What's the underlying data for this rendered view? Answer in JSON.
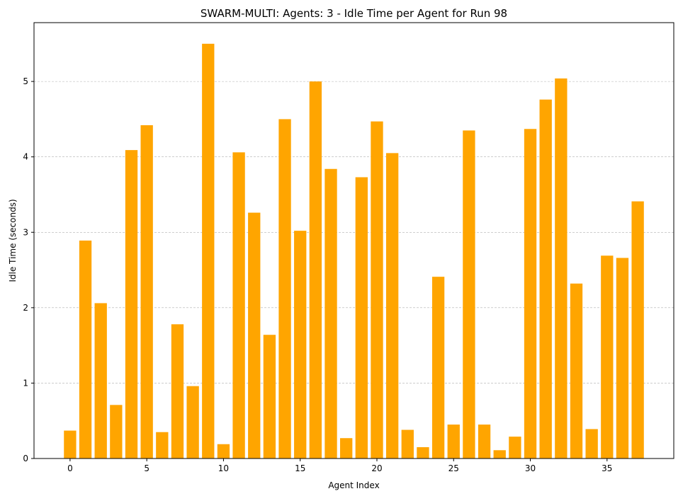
{
  "chart_data": {
    "type": "bar",
    "title": "SWARM-MULTI: Agents: 3 - Idle Time per Agent for Run 98",
    "xlabel": "Agent Index",
    "ylabel": "Idle Time (seconds)",
    "x": [
      0,
      1,
      2,
      3,
      4,
      5,
      6,
      7,
      8,
      9,
      10,
      11,
      12,
      13,
      14,
      15,
      16,
      17,
      18,
      19,
      20,
      21,
      22,
      23,
      24,
      25,
      26,
      27,
      28,
      29,
      30,
      31,
      32,
      33,
      34,
      35,
      36,
      37
    ],
    "values": [
      0.37,
      2.89,
      2.06,
      0.71,
      4.09,
      4.42,
      0.35,
      1.78,
      0.96,
      5.5,
      0.19,
      4.06,
      3.26,
      1.64,
      4.5,
      3.02,
      5.0,
      3.84,
      0.27,
      3.73,
      4.47,
      4.05,
      0.38,
      0.15,
      2.41,
      0.45,
      4.35,
      0.45,
      0.11,
      0.29,
      4.37,
      4.76,
      5.04,
      2.32,
      0.39,
      2.69,
      2.66,
      3.41
    ],
    "xlim": [
      -2.35,
      39.35
    ],
    "ylim": [
      0,
      5.78
    ],
    "xticks": [
      0,
      5,
      10,
      15,
      20,
      25,
      30,
      35
    ],
    "yticks": [
      0,
      1,
      2,
      3,
      4,
      5
    ],
    "grid": "y-dashed",
    "bar_color": "#ffa500"
  }
}
